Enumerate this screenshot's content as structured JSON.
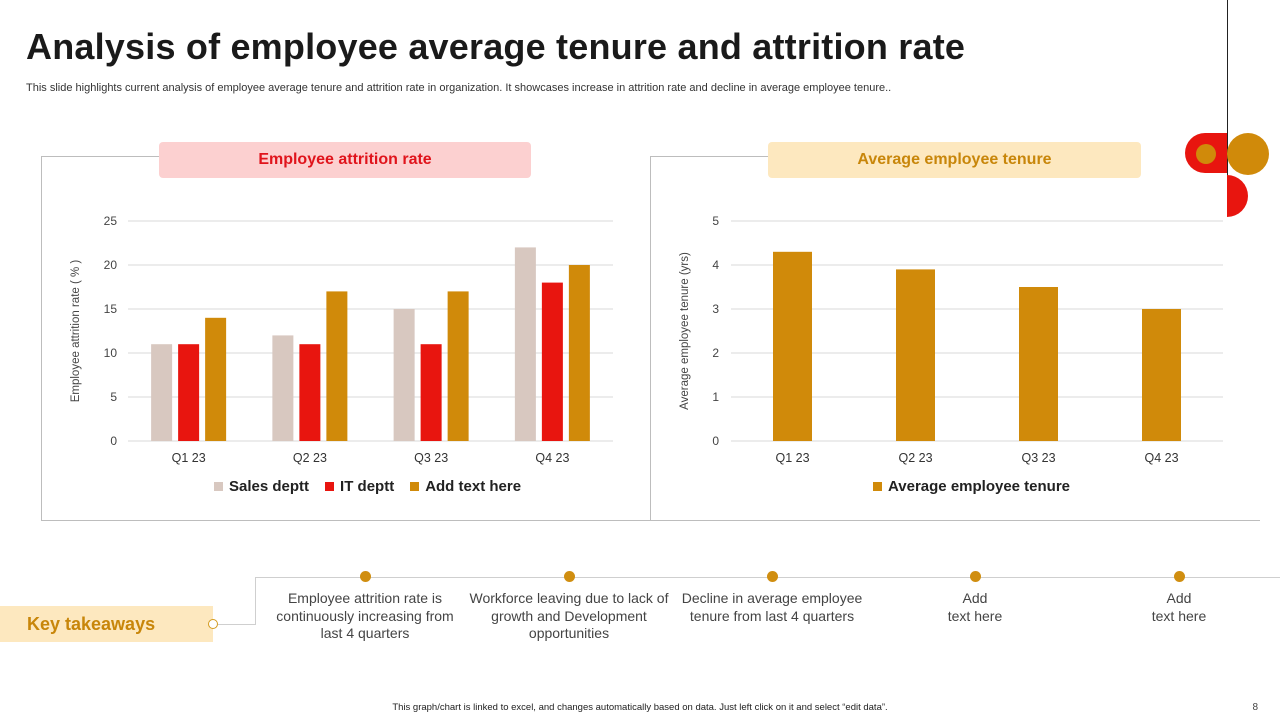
{
  "header": {
    "title": "Analysis of employee average tenure and attrition rate",
    "subtitle": "This slide highlights current analysis of employee average tenure and attrition rate in organization. It showcases increase in attrition rate and decline in average employee tenure.."
  },
  "colors": {
    "sales": "#d8c8c0",
    "it": "#e8150f",
    "accent": "#d08a0a",
    "attrition_box_bg": "#fcd0d0",
    "attrition_box_text": "#e0141c",
    "tenure_box_bg": "#fde8bf",
    "tenure_box_text": "#c8860a"
  },
  "chart_data": [
    {
      "type": "bar",
      "title": "Employee attrition rate",
      "categories": [
        "Q1 23",
        "Q2 23",
        "Q3 23",
        "Q4 23"
      ],
      "series": [
        {
          "name": "Sales deptt",
          "values": [
            11,
            12,
            15,
            22
          ]
        },
        {
          "name": "IT deptt",
          "values": [
            11,
            11,
            11,
            18
          ]
        },
        {
          "name": "Add text here",
          "values": [
            14,
            17,
            17,
            20
          ]
        }
      ],
      "ylabel": "Employee  attrition rate ( % )",
      "ylim": [
        0,
        25
      ],
      "yticks": [
        0,
        5,
        10,
        15,
        20,
        25
      ],
      "grid": true,
      "legend": "bottom"
    },
    {
      "type": "bar",
      "title": "Average employee tenure",
      "categories": [
        "Q1 23",
        "Q2 23",
        "Q3 23",
        "Q4 23"
      ],
      "series": [
        {
          "name": "Average employee tenure",
          "values": [
            4.3,
            3.9,
            3.5,
            3.0
          ]
        }
      ],
      "ylabel": "Average  employee  tenure  (yrs)",
      "ylim": [
        0,
        5
      ],
      "yticks": [
        0,
        1,
        2,
        3,
        4,
        5
      ],
      "grid": true,
      "legend": "bottom"
    }
  ],
  "takeaways": {
    "label": "Key takeaways",
    "items": [
      "Employee attrition rate is continuously increasing from last 4 quarters",
      "Workforce leaving due to lack of growth and Development opportunities",
      "Decline in average employee tenure from last 4 quarters",
      "Add\ntext here",
      "Add\ntext here"
    ]
  },
  "footer": {
    "note": "This graph/chart is linked to excel, and changes automatically based on data. Just left click on it and select “edit data”.",
    "page_number": "8"
  }
}
